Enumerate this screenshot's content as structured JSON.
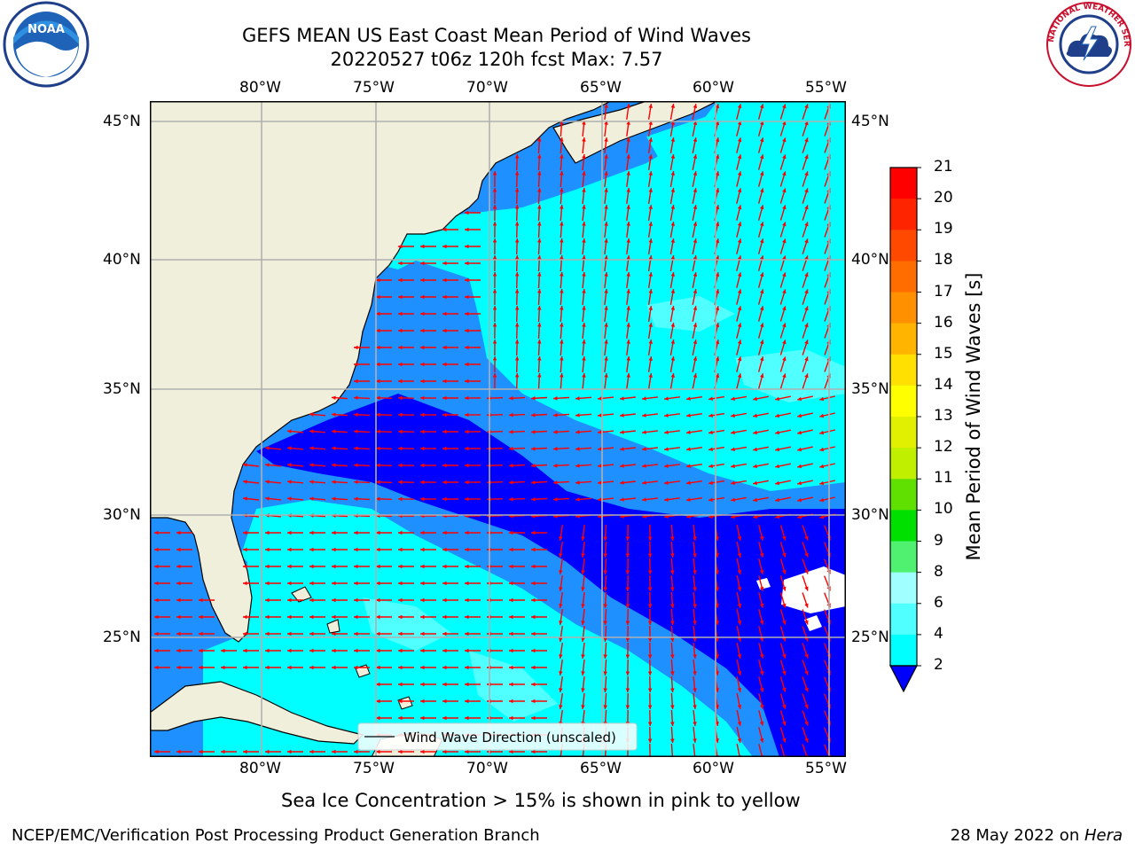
{
  "title_line1": "GEFS MEAN US East Coast Mean Period of Wind Waves",
  "title_line2": "20220527 t06z 120h fcst   Max: 7.57",
  "lon_labels": [
    "80°W",
    "75°W",
    "70°W",
    "65°W",
    "60°W",
    "55°W"
  ],
  "lat_labels": [
    "45°N",
    "40°N",
    "35°N",
    "30°N",
    "25°N"
  ],
  "legend_label": "Wind Wave Direction (unscaled)",
  "colorbar": {
    "label": "Mean Period of Wind Waves [s]",
    "ticks": [
      "21",
      "20",
      "19",
      "18",
      "17",
      "16",
      "15",
      "14",
      "13",
      "12",
      "11",
      "10",
      "9",
      "8",
      "6",
      "4",
      "2"
    ],
    "colors": [
      "#ff0000",
      "#ff2400",
      "#ff4800",
      "#ff6c00",
      "#ff9000",
      "#ffb400",
      "#ffe000",
      "#ffff00",
      "#e0f000",
      "#c0f000",
      "#60e000",
      "#00e000",
      "#50f070",
      "#a0ffff",
      "#50ffff",
      "#00ffff",
      "#1e90ff",
      "#0000ff"
    ]
  },
  "logos": {
    "noaa": "NOAA",
    "nws": "NATIONAL WEATHER SERVICE"
  },
  "sea_ice_note": "Sea Ice Concentration > 15% is shown in pink to yellow",
  "footer_left": "NCEP/EMC/Verification Post Processing Product Generation Branch",
  "footer_date": "28 May 2022 on ",
  "footer_machine": "Hera"
}
